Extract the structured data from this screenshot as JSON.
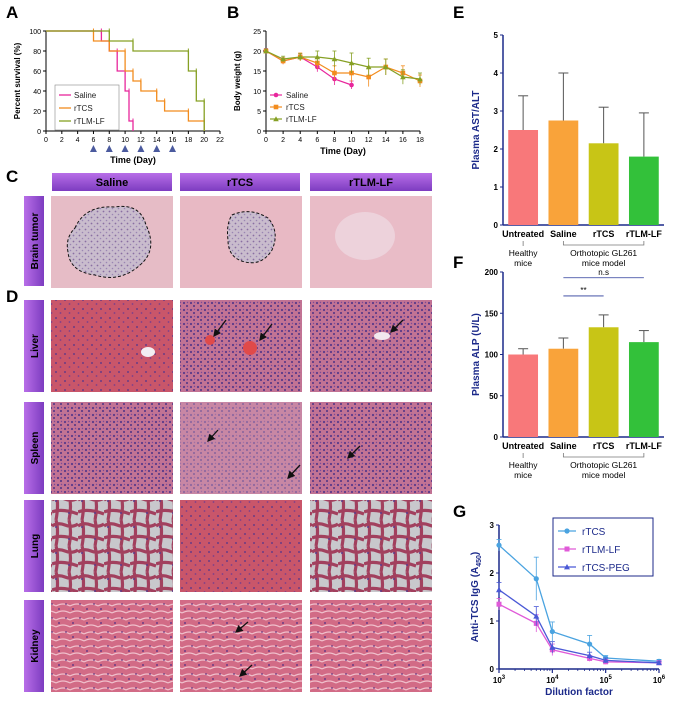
{
  "panel_letters": {
    "A": "A",
    "B": "B",
    "C": "C",
    "D": "D",
    "E": "E",
    "F": "F",
    "G": "G"
  },
  "colors": {
    "saline": "#e8269c",
    "rtcs": "#f28c1e",
    "rtlmlf": "#86a024",
    "untreated": "#f8787a",
    "e_saline": "#f9a33a",
    "e_rtcs": "#c8c516",
    "e_rtlmlf": "#33c13a",
    "axis_blue": "#1c2a8a",
    "stain_bg": "#d9868e",
    "tumor_bg": "#e8b9c4",
    "nucleus": "#5a3a8a",
    "header_purple": "#9b4fd4",
    "g_rtcs": "#4aa3e0",
    "g_rtlmlf": "#e05ad8",
    "g_rtcspeg": "#4a59d6"
  },
  "group_headers": [
    "Saline",
    "rTCS",
    "rTLM-LF"
  ],
  "row_labels": [
    "Brain tumor",
    "Liver",
    "Spleen",
    "Lung",
    "Kidney"
  ],
  "chart_data": [
    {
      "id": "A",
      "type": "line",
      "xlabel": "Time (Day)",
      "ylabel": "Percent survival (%)",
      "xlim": [
        0,
        22
      ],
      "ylim": [
        0,
        100
      ],
      "xticks": [
        0,
        2,
        4,
        6,
        8,
        10,
        12,
        14,
        16,
        18,
        20,
        22
      ],
      "yticks": [
        0,
        20,
        40,
        60,
        80,
        100
      ],
      "legend_position": "bottom-left",
      "injection_days": [
        6,
        8,
        10,
        12,
        14,
        16
      ],
      "series": [
        {
          "name": "Saline",
          "color": "#e8269c",
          "steps": [
            [
              0,
              100
            ],
            [
              7,
              100
            ],
            [
              7,
              90
            ],
            [
              8,
              90
            ],
            [
              8,
              80
            ],
            [
              9,
              80
            ],
            [
              9,
              60
            ],
            [
              10,
              60
            ],
            [
              10,
              40
            ],
            [
              10.5,
              40
            ],
            [
              10.5,
              10
            ],
            [
              11,
              10
            ],
            [
              11,
              0
            ]
          ]
        },
        {
          "name": "rTCS",
          "color": "#f28c1e",
          "steps": [
            [
              0,
              100
            ],
            [
              6,
              100
            ],
            [
              6,
              90
            ],
            [
              8,
              90
            ],
            [
              8,
              80
            ],
            [
              10,
              80
            ],
            [
              10,
              60
            ],
            [
              11,
              60
            ],
            [
              11,
              50
            ],
            [
              12,
              50
            ],
            [
              12,
              40
            ],
            [
              14,
              40
            ],
            [
              14,
              30
            ],
            [
              15,
              30
            ],
            [
              15,
              20
            ],
            [
              18,
              20
            ],
            [
              18,
              10
            ],
            [
              20,
              10
            ],
            [
              20,
              0
            ]
          ]
        },
        {
          "name": "rTLM-LF",
          "color": "#86a024",
          "steps": [
            [
              0,
              100
            ],
            [
              8,
              100
            ],
            [
              8,
              90
            ],
            [
              11,
              90
            ],
            [
              11,
              80
            ],
            [
              18,
              80
            ],
            [
              18,
              60
            ],
            [
              19,
              60
            ],
            [
              19,
              30
            ],
            [
              20,
              30
            ],
            [
              20,
              0
            ]
          ]
        }
      ]
    },
    {
      "id": "B",
      "type": "line",
      "xlabel": "Time (Day)",
      "ylabel": "Body weight (g)",
      "xlim": [
        0,
        18
      ],
      "ylim": [
        0,
        25
      ],
      "xticks": [
        0,
        2,
        4,
        6,
        8,
        10,
        12,
        14,
        16,
        18
      ],
      "yticks": [
        0,
        5,
        10,
        15,
        20,
        25
      ],
      "legend_position": "bottom-left",
      "series": [
        {
          "name": "Saline",
          "color": "#e8269c",
          "x": [
            0,
            2,
            4,
            6,
            8,
            10
          ],
          "y": [
            20,
            17.5,
            18.5,
            16,
            13,
            11.5
          ],
          "err": [
            0.6,
            0.8,
            0.8,
            1.2,
            1.5,
            1
          ]
        },
        {
          "name": "rTCS",
          "color": "#f28c1e",
          "x": [
            0,
            2,
            4,
            6,
            8,
            10,
            12,
            14,
            16,
            18
          ],
          "y": [
            20,
            17.5,
            18.5,
            17,
            14.5,
            14.5,
            13.5,
            16,
            14.5,
            12.5
          ],
          "err": [
            0.5,
            0.8,
            1,
            1.4,
            1.8,
            2.2,
            2.4,
            2,
            1.8,
            1.5
          ]
        },
        {
          "name": "rTLM-LF",
          "color": "#86a024",
          "x": [
            0,
            2,
            4,
            6,
            8,
            10,
            12,
            14,
            16,
            18
          ],
          "y": [
            20,
            18,
            18.5,
            18.5,
            18,
            17,
            16,
            16,
            13.5,
            13
          ],
          "err": [
            0.5,
            0.7,
            0.8,
            1.5,
            2,
            2.5,
            2.2,
            2,
            1.8,
            1.5
          ]
        }
      ]
    },
    {
      "id": "E",
      "type": "bar",
      "ylabel": "Plasma AST/ALT",
      "ylim": [
        0,
        5
      ],
      "yticks": [
        0,
        1,
        2,
        3,
        4,
        5
      ],
      "categories": [
        "Untreated",
        "Saline",
        "rTCS",
        "rTLM-LF"
      ],
      "values": [
        2.5,
        2.75,
        2.15,
        1.8
      ],
      "errors": [
        0.9,
        1.25,
        0.95,
        1.15
      ],
      "bar_colors": [
        "#f8787a",
        "#f9a33a",
        "#c8c516",
        "#33c13a"
      ],
      "group_labels": [
        {
          "text": "Healthy mice",
          "span": [
            0,
            0
          ]
        },
        {
          "text": "Orthotopic GL261 mice model",
          "span": [
            1,
            3
          ]
        }
      ]
    },
    {
      "id": "F",
      "type": "bar",
      "ylabel": "Plasma ALP (U/L)",
      "ylim": [
        0,
        200
      ],
      "yticks": [
        0,
        50,
        100,
        150,
        200
      ],
      "categories": [
        "Untreated",
        "Saline",
        "rTCS",
        "rTLM-LF"
      ],
      "values": [
        100,
        107,
        133,
        115
      ],
      "errors": [
        7,
        13,
        15,
        14
      ],
      "bar_colors": [
        "#f8787a",
        "#f9a33a",
        "#c8c516",
        "#33c13a"
      ],
      "significance": [
        {
          "pair": [
            1,
            2
          ],
          "label": "**"
        },
        {
          "pair": [
            1,
            3
          ],
          "label": "n.s"
        }
      ],
      "group_labels": [
        {
          "text": "Healthy mice",
          "span": [
            0,
            0
          ]
        },
        {
          "text": "Orthotopic GL261 mice model",
          "span": [
            1,
            3
          ]
        }
      ]
    },
    {
      "id": "G",
      "type": "line",
      "xscale": "log",
      "xlabel": "Dilution factor",
      "ylabel": "Anti-TCS IgG (A450)",
      "ylabel_main": "Anti-TCS IgG (A",
      "ylabel_sub": "450",
      "ylabel_end": ")",
      "xlim": [
        1000,
        1000000
      ],
      "ylim": [
        0,
        3
      ],
      "xticks": [
        {
          "v": 1000,
          "base": "10",
          "exp": "3"
        },
        {
          "v": 10000,
          "base": "10",
          "exp": "4"
        },
        {
          "v": 100000,
          "base": "10",
          "exp": "5"
        },
        {
          "v": 1000000,
          "base": "10",
          "exp": "6"
        }
      ],
      "yticks": [
        0,
        1,
        2,
        3
      ],
      "legend_position": "top-right",
      "series": [
        {
          "name": "rTCS",
          "color": "#4aa3e0",
          "marker": "circle",
          "x": [
            1000,
            5000,
            10000,
            50000,
            100000,
            1000000
          ],
          "y": [
            2.58,
            1.88,
            0.78,
            0.52,
            0.23,
            0.16
          ],
          "err": [
            0.12,
            0.45,
            0.2,
            0.18,
            0.05,
            0.04
          ]
        },
        {
          "name": "rTLM-LF",
          "color": "#e05ad8",
          "marker": "square",
          "x": [
            1000,
            5000,
            10000,
            50000,
            100000,
            1000000
          ],
          "y": [
            1.35,
            0.95,
            0.4,
            0.22,
            0.15,
            0.13
          ],
          "err": [
            0.12,
            0.18,
            0.12,
            0.06,
            0.05,
            0.03
          ]
        },
        {
          "name": "rTCS-PEG",
          "color": "#4a59d6",
          "marker": "triangle",
          "x": [
            1000,
            5000,
            10000,
            50000,
            100000,
            1000000
          ],
          "y": [
            1.65,
            1.1,
            0.45,
            0.28,
            0.18,
            0.13
          ],
          "err": [
            0.15,
            0.2,
            0.12,
            0.07,
            0.05,
            0.03
          ]
        }
      ]
    }
  ]
}
